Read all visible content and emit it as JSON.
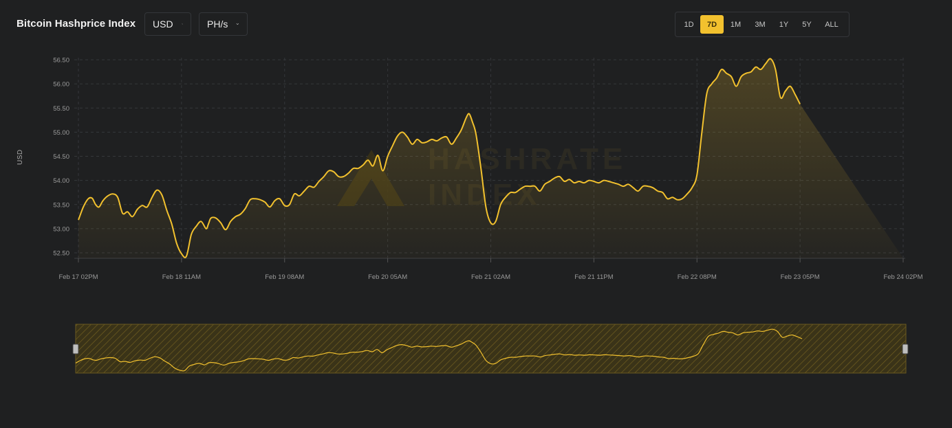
{
  "header": {
    "title": "Bitcoin Hashprice Index",
    "currency": "USD",
    "unit": "PH/s"
  },
  "range_buttons": [
    "1D",
    "7D",
    "1M",
    "3M",
    "1Y",
    "5Y",
    "ALL"
  ],
  "active_range": "7D",
  "watermark": {
    "line1": "HASHRATE",
    "line2": "INDEX"
  },
  "colors": {
    "background": "#1f2021",
    "accent": "#f2c12e",
    "grid": "#3a3c3f",
    "axis_text": "#9a9a9a"
  },
  "chart_data": {
    "type": "area",
    "title": "Bitcoin Hashprice Index",
    "ylabel": "USD",
    "xlabel": "",
    "ylim": [
      52.4,
      56.6
    ],
    "yticks": [
      "52.50",
      "53.00",
      "53.50",
      "54.00",
      "54.50",
      "55.00",
      "55.50",
      "56.00",
      "56.50"
    ],
    "xticks": [
      "Feb 17 02PM",
      "Feb 18 11AM",
      "Feb 19 08AM",
      "Feb 20 05AM",
      "Feb 21 02AM",
      "Feb 21 11PM",
      "Feb 22 08PM",
      "Feb 23 05PM",
      "Feb 24 02PM"
    ],
    "x_tick_hours": [
      0,
      21,
      42,
      63,
      84,
      105,
      126,
      147,
      168
    ],
    "grid": true,
    "series": [
      {
        "values": [
          [
            0,
            53.18
          ],
          [
            1,
            53.45
          ],
          [
            2,
            53.62
          ],
          [
            2.8,
            53.63
          ],
          [
            3.5,
            53.5
          ],
          [
            4.2,
            53.45
          ],
          [
            5,
            53.58
          ],
          [
            6,
            53.68
          ],
          [
            7,
            53.72
          ],
          [
            8,
            53.65
          ],
          [
            9,
            53.32
          ],
          [
            10,
            53.35
          ],
          [
            11,
            53.25
          ],
          [
            12,
            53.4
          ],
          [
            13,
            53.48
          ],
          [
            14,
            53.45
          ],
          [
            15,
            53.65
          ],
          [
            16,
            53.8
          ],
          [
            17,
            53.7
          ],
          [
            18,
            53.38
          ],
          [
            19,
            53.1
          ],
          [
            20,
            52.7
          ],
          [
            21,
            52.48
          ],
          [
            22,
            52.43
          ],
          [
            23,
            52.88
          ],
          [
            24,
            53.05
          ],
          [
            25,
            53.15
          ],
          [
            26,
            53.0
          ],
          [
            26.5,
            53.1
          ],
          [
            27,
            53.22
          ],
          [
            28,
            53.22
          ],
          [
            29,
            53.12
          ],
          [
            30,
            52.98
          ],
          [
            31,
            53.15
          ],
          [
            32,
            53.25
          ],
          [
            33,
            53.3
          ],
          [
            34,
            53.42
          ],
          [
            35,
            53.6
          ],
          [
            36,
            53.62
          ],
          [
            37,
            53.6
          ],
          [
            38,
            53.55
          ],
          [
            39,
            53.45
          ],
          [
            40,
            53.58
          ],
          [
            41,
            53.62
          ],
          [
            42,
            53.48
          ],
          [
            43,
            53.5
          ],
          [
            44,
            53.72
          ],
          [
            45,
            53.68
          ],
          [
            46,
            53.78
          ],
          [
            47,
            53.88
          ],
          [
            48,
            53.86
          ],
          [
            49,
            53.98
          ],
          [
            50,
            54.08
          ],
          [
            51,
            54.2
          ],
          [
            52,
            54.18
          ],
          [
            53,
            54.08
          ],
          [
            54,
            54.08
          ],
          [
            55,
            54.15
          ],
          [
            56,
            54.25
          ],
          [
            57,
            54.25
          ],
          [
            58,
            54.32
          ],
          [
            59,
            54.42
          ],
          [
            60,
            54.3
          ],
          [
            61,
            54.52
          ],
          [
            62,
            54.2
          ],
          [
            63,
            54.5
          ],
          [
            64,
            54.72
          ],
          [
            65,
            54.92
          ],
          [
            66,
            55.0
          ],
          [
            67,
            54.9
          ],
          [
            68,
            54.75
          ],
          [
            69,
            54.85
          ],
          [
            70,
            54.78
          ],
          [
            71,
            54.8
          ],
          [
            72,
            54.85
          ],
          [
            73,
            54.82
          ],
          [
            74,
            54.88
          ],
          [
            75,
            54.9
          ],
          [
            76,
            54.75
          ],
          [
            77,
            54.88
          ],
          [
            78,
            55.05
          ],
          [
            79,
            55.3
          ],
          [
            79.6,
            55.38
          ],
          [
            80.3,
            55.2
          ],
          [
            81,
            54.95
          ],
          [
            82,
            54.25
          ],
          [
            83,
            53.45
          ],
          [
            84,
            53.12
          ],
          [
            85,
            53.15
          ],
          [
            86,
            53.5
          ],
          [
            87,
            53.65
          ],
          [
            88,
            53.75
          ],
          [
            89,
            53.75
          ],
          [
            90,
            53.82
          ],
          [
            91,
            53.88
          ],
          [
            92,
            53.88
          ],
          [
            93,
            53.88
          ],
          [
            94,
            53.78
          ],
          [
            95,
            53.92
          ],
          [
            96,
            53.98
          ],
          [
            97,
            54.05
          ],
          [
            98,
            54.08
          ],
          [
            99,
            53.98
          ],
          [
            100,
            54.02
          ],
          [
            101,
            53.95
          ],
          [
            102,
            53.98
          ],
          [
            103,
            53.95
          ],
          [
            104,
            54.0
          ],
          [
            105,
            53.98
          ],
          [
            106,
            53.95
          ],
          [
            107,
            54.0
          ],
          [
            108,
            53.98
          ],
          [
            109,
            53.95
          ],
          [
            110,
            53.92
          ],
          [
            111,
            53.88
          ],
          [
            112,
            53.92
          ],
          [
            113,
            53.85
          ],
          [
            114,
            53.78
          ],
          [
            115,
            53.88
          ],
          [
            116,
            53.88
          ],
          [
            117,
            53.85
          ],
          [
            118,
            53.78
          ],
          [
            119,
            53.75
          ],
          [
            120,
            53.62
          ],
          [
            121,
            53.65
          ],
          [
            122,
            53.6
          ],
          [
            123,
            53.62
          ],
          [
            124,
            53.72
          ],
          [
            125,
            53.85
          ],
          [
            126,
            54.12
          ],
          [
            127,
            55.0
          ],
          [
            128,
            55.8
          ],
          [
            129,
            56.0
          ],
          [
            130,
            56.12
          ],
          [
            131,
            56.3
          ],
          [
            132,
            56.22
          ],
          [
            133,
            56.15
          ],
          [
            134,
            55.95
          ],
          [
            135,
            56.15
          ],
          [
            136,
            56.22
          ],
          [
            137,
            56.25
          ],
          [
            138,
            56.35
          ],
          [
            139,
            56.3
          ],
          [
            140,
            56.42
          ],
          [
            141,
            56.52
          ],
          [
            142,
            56.3
          ],
          [
            143,
            55.72
          ],
          [
            144,
            55.85
          ],
          [
            145,
            55.95
          ],
          [
            146,
            55.78
          ],
          [
            147,
            55.58
          ]
        ]
      }
    ]
  }
}
